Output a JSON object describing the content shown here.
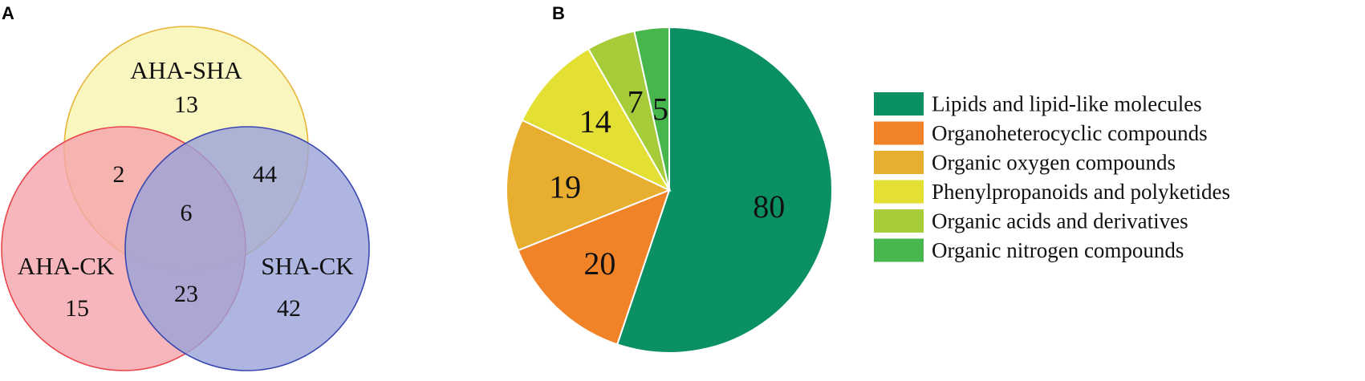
{
  "panels": {
    "a": "A",
    "b": "B"
  },
  "venn": {
    "sets": [
      {
        "name": "AHA-SHA",
        "only": "13",
        "fill": "#f9f6c0",
        "stroke": "#e8b43c"
      },
      {
        "name": "AHA-CK",
        "only": "15",
        "fill": "#f4a4aa",
        "stroke": "#e8454d"
      },
      {
        "name": "SHA-CK",
        "only": "42",
        "fill": "#9aa3d9",
        "stroke": "#3a47b0"
      }
    ],
    "overlaps": {
      "aha_sha__aha_ck": "2",
      "aha_sha__sha_ck": "44",
      "aha_ck__sha_ck": "23",
      "all_three": "6"
    }
  },
  "chart_data": {
    "type": "pie",
    "start": "12 o'clock, clockwise",
    "slices": [
      {
        "label": "Lipids and lipid-like molecules",
        "value": 80,
        "color": "#0b9063"
      },
      {
        "label": "Organoheterocyclic compounds",
        "value": 20,
        "color": "#f08228"
      },
      {
        "label": "Organic oxygen compounds",
        "value": 19,
        "color": "#e8ae30"
      },
      {
        "label": "Phenylpropanoids and polyketides",
        "value": 14,
        "color": "#e3df33"
      },
      {
        "label": "Organic acids and derivatives",
        "value": 7,
        "color": "#a6cc39"
      },
      {
        "label": "Organic nitrogen compounds",
        "value": 5,
        "color": "#47b64c"
      }
    ],
    "legend": "right"
  }
}
